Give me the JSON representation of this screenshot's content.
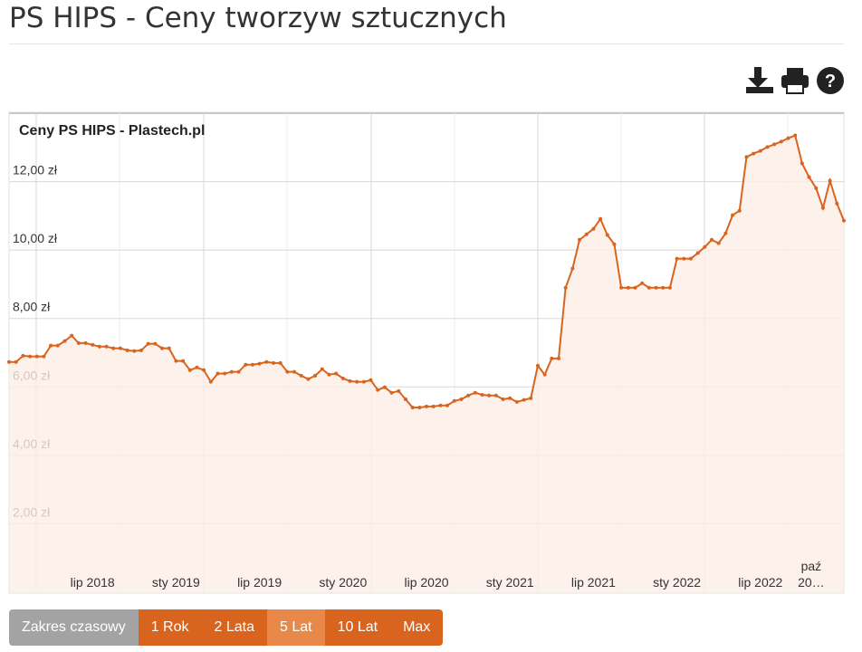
{
  "header": {
    "title": "PS HIPS - Ceny tworzyw sztucznych"
  },
  "chart_data": {
    "type": "area",
    "title": "Ceny PS HIPS - Plastech.pl",
    "color": "#d9641e",
    "fill": "#fdeee6",
    "grid": true,
    "categories": [
      null,
      null,
      null,
      null,
      null,
      null,
      null,
      null,
      null,
      null,
      null,
      null,
      "lip 2018",
      null,
      null,
      null,
      null,
      null,
      null,
      null,
      null,
      null,
      null,
      null,
      "sty 2019",
      null,
      null,
      null,
      null,
      null,
      null,
      null,
      null,
      null,
      null,
      null,
      "lip 2019",
      null,
      null,
      null,
      null,
      null,
      null,
      null,
      null,
      null,
      null,
      null,
      "sty 2020",
      null,
      null,
      null,
      null,
      null,
      null,
      null,
      null,
      null,
      null,
      null,
      "lip 2020",
      null,
      null,
      null,
      null,
      null,
      null,
      null,
      null,
      null,
      null,
      null,
      "sty 2021",
      null,
      null,
      null,
      null,
      null,
      null,
      null,
      null,
      null,
      null,
      null,
      "lip 2021",
      null,
      null,
      null,
      null,
      null,
      null,
      null,
      null,
      null,
      null,
      null,
      "sty 2022",
      null,
      null,
      null,
      null,
      null,
      null,
      null,
      null,
      null,
      null,
      null,
      "lip 2022",
      null,
      null,
      null,
      null,
      null,
      "paź 20…",
      null,
      null,
      null,
      null,
      null,
      null
    ],
    "values": [
      6.73,
      6.73,
      6.91,
      6.89,
      6.89,
      6.89,
      7.21,
      7.21,
      7.34,
      7.5,
      7.28,
      7.28,
      7.23,
      7.18,
      7.18,
      7.13,
      7.13,
      7.07,
      7.05,
      7.07,
      7.26,
      7.26,
      7.13,
      7.13,
      6.76,
      6.76,
      6.49,
      6.57,
      6.49,
      6.15,
      6.39,
      6.39,
      6.44,
      6.44,
      6.65,
      6.65,
      6.68,
      6.73,
      6.7,
      6.7,
      6.44,
      6.44,
      6.33,
      6.23,
      6.33,
      6.52,
      6.36,
      6.39,
      6.25,
      6.17,
      6.15,
      6.15,
      6.2,
      5.91,
      5.99,
      5.83,
      5.88,
      5.64,
      5.4,
      5.4,
      5.43,
      5.43,
      5.46,
      5.46,
      5.59,
      5.64,
      5.75,
      5.83,
      5.77,
      5.75,
      5.75,
      5.64,
      5.67,
      5.56,
      5.62,
      5.67,
      6.62,
      6.36,
      6.83,
      6.83,
      8.9,
      9.46,
      10.3,
      10.46,
      10.62,
      10.91,
      10.44,
      10.17,
      8.9,
      8.9,
      8.9,
      9.03,
      8.9,
      8.9,
      8.9,
      8.9,
      9.75,
      9.75,
      9.75,
      9.91,
      10.09,
      10.3,
      10.2,
      10.49,
      11.02,
      11.15,
      12.72,
      12.82,
      12.9,
      13.01,
      13.09,
      13.17,
      13.27,
      13.35,
      12.53,
      12.13,
      11.81,
      11.23,
      12.03,
      11.36,
      10.86
    ],
    "ylim": [
      0,
      14
    ],
    "yticks": [
      {
        "value": 2,
        "label": "2,00 zł"
      },
      {
        "value": 4,
        "label": "4,00 zł"
      },
      {
        "value": 6,
        "label": "6,00 zł"
      },
      {
        "value": 8,
        "label": "8,00 zł"
      },
      {
        "value": 10,
        "label": "10,00 zł"
      },
      {
        "value": 12,
        "label": "12,00 zł"
      }
    ]
  },
  "range_selector": {
    "label": "Zakres czasowy",
    "buttons": [
      "1 Rok",
      "2 Lata",
      "5 Lat",
      "10 Lat",
      "Max"
    ],
    "active": 2
  }
}
